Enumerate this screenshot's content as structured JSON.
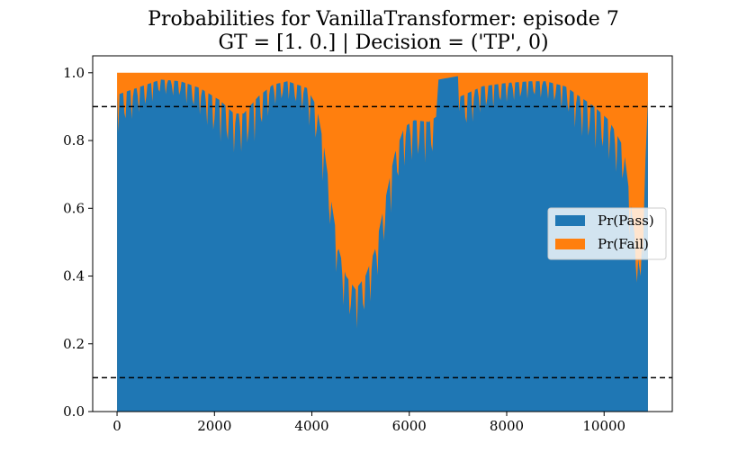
{
  "chart_data": {
    "type": "area",
    "title_line1": "Probabilities for VanillaTransformer: episode 7",
    "title_line2": "GT = [1. 0.] | Decision = ('TP', 0)",
    "xlabel": "",
    "ylabel": "",
    "xlim": [
      -500,
      11400
    ],
    "ylim": [
      0.0,
      1.05
    ],
    "xticks": [
      0,
      2000,
      4000,
      6000,
      8000,
      10000
    ],
    "yticks": [
      0.0,
      0.2,
      0.4,
      0.6,
      0.8,
      1.0
    ],
    "x_range": [
      0,
      10900
    ],
    "hlines": [
      0.9,
      0.1
    ],
    "legend_position": "center-right",
    "grid": false,
    "series": [
      {
        "name": "Pr(Pass)",
        "color": "#1f77b4",
        "trend": [
          [
            0,
            0.935
          ],
          [
            400,
            0.955
          ],
          [
            900,
            0.98
          ],
          [
            1300,
            0.975
          ],
          [
            1700,
            0.955
          ],
          [
            2100,
            0.92
          ],
          [
            2400,
            0.88
          ],
          [
            2600,
            0.88
          ],
          [
            2900,
            0.93
          ],
          [
            3200,
            0.965
          ],
          [
            3500,
            0.975
          ],
          [
            3900,
            0.955
          ],
          [
            4100,
            0.9
          ],
          [
            4250,
            0.78
          ],
          [
            4400,
            0.62
          ],
          [
            4550,
            0.48
          ],
          [
            4700,
            0.4
          ],
          [
            4900,
            0.36
          ],
          [
            5100,
            0.4
          ],
          [
            5300,
            0.48
          ],
          [
            5500,
            0.62
          ],
          [
            5700,
            0.76
          ],
          [
            5900,
            0.84
          ],
          [
            6100,
            0.86
          ],
          [
            6400,
            0.855
          ],
          [
            6550,
            0.87
          ],
          [
            6600,
            0.98
          ],
          [
            7000,
            0.99
          ],
          [
            7050,
            0.93
          ],
          [
            7500,
            0.96
          ],
          [
            8000,
            0.97
          ],
          [
            8500,
            0.975
          ],
          [
            8800,
            0.975
          ],
          [
            9200,
            0.96
          ],
          [
            9500,
            0.93
          ],
          [
            9800,
            0.9
          ],
          [
            10100,
            0.86
          ],
          [
            10400,
            0.78
          ],
          [
            10600,
            0.55
          ],
          [
            10750,
            0.4
          ],
          [
            10900,
            0.92
          ]
        ]
      },
      {
        "name": "Pr(Fail)",
        "color": "#ff7f0e",
        "note": "stacked to 1.0"
      }
    ]
  }
}
